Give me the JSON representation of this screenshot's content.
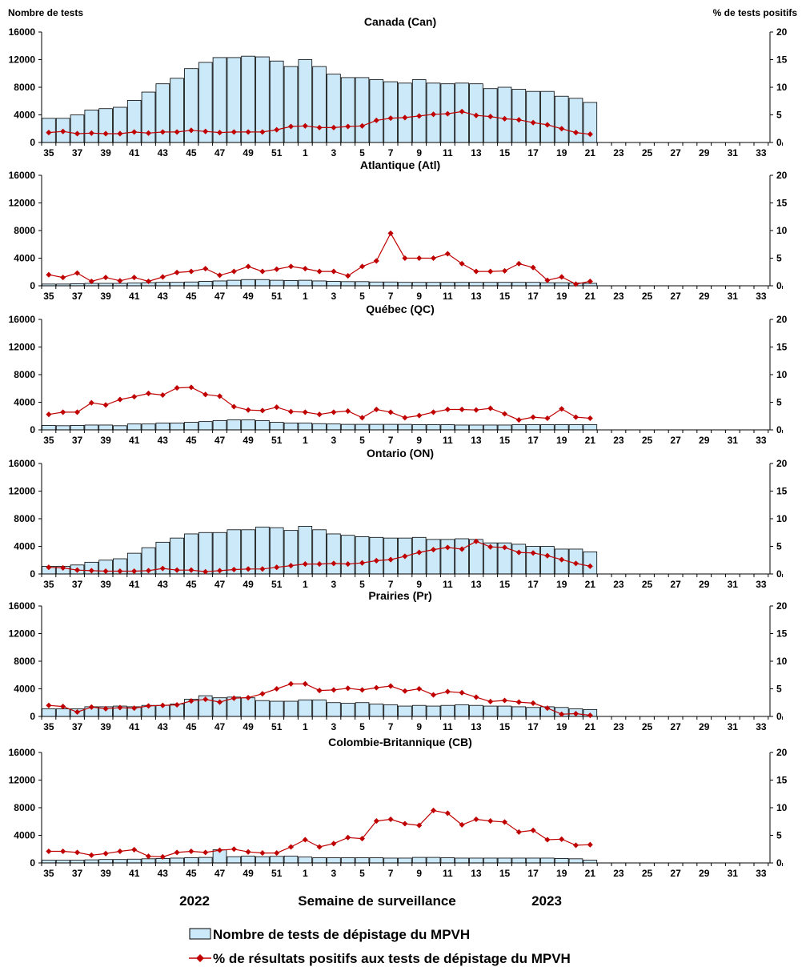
{
  "chart_data": [
    {
      "type": "bar+line",
      "title": "Canada (Can)",
      "ylabel_left": "Nombre de tests",
      "ylabel_right": "%  de tests positifs",
      "ylim_left": [
        0,
        16000
      ],
      "ylim_right": [
        0,
        20
      ],
      "yticks_left": [
        "0",
        "4000",
        "8000",
        "12000",
        "16000"
      ],
      "yticks_right": [
        "0",
        "5",
        "10",
        "15",
        "20"
      ],
      "weeks": [
        35,
        36,
        37,
        38,
        39,
        40,
        41,
        42,
        43,
        44,
        45,
        46,
        47,
        48,
        49,
        50,
        51,
        52,
        1,
        2,
        3,
        4,
        5,
        6,
        7,
        8,
        9,
        10,
        11,
        12,
        13,
        14,
        15,
        16,
        17,
        18,
        19,
        20,
        21,
        22,
        23,
        24,
        25,
        26,
        27,
        28,
        29,
        30,
        31,
        32,
        33,
        34
      ],
      "week_labels": [
        "35",
        "37",
        "39",
        "41",
        "43",
        "45",
        "47",
        "49",
        "51",
        "1",
        "3",
        "5",
        "7",
        "9",
        "11",
        "13",
        "15",
        "17",
        "19",
        "21",
        "23",
        "25",
        "27",
        "29",
        "31",
        "33"
      ],
      "series": [
        {
          "name": "Nombre de tests de dépistage du MPVH",
          "kind": "bar",
          "values": [
            3500,
            3500,
            4000,
            4700,
            4900,
            5100,
            6100,
            7300,
            8500,
            9300,
            10700,
            11600,
            12300,
            12300,
            12500,
            12400,
            11800,
            11000,
            12000,
            11000,
            9900,
            9400,
            9400,
            9100,
            8800,
            8600,
            9100,
            8600,
            8500,
            8600,
            8500,
            7800,
            8000,
            7700,
            7400,
            7400,
            6700,
            6400,
            5800
          ]
        },
        {
          "name": "% de résultats positifs aux tests de dépistage du MPVH",
          "kind": "line",
          "values": [
            1.8,
            2.0,
            1.6,
            1.7,
            1.6,
            1.6,
            1.9,
            1.7,
            1.9,
            1.9,
            2.2,
            2.0,
            1.8,
            1.9,
            1.9,
            1.9,
            2.3,
            2.9,
            3.0,
            2.7,
            2.7,
            2.9,
            3.0,
            4.0,
            4.4,
            4.5,
            4.8,
            5.1,
            5.2,
            5.6,
            4.9,
            4.7,
            4.3,
            4.1,
            3.6,
            3.2,
            2.5,
            1.8,
            1.5
          ]
        }
      ]
    },
    {
      "type": "bar+line",
      "title": "Atlantique (Atl)",
      "ylim_left": [
        0,
        16000
      ],
      "ylim_right": [
        0,
        20
      ],
      "yticks_left": [
        "0",
        "4000",
        "8000",
        "12000",
        "16000"
      ],
      "yticks_right": [
        "0",
        "5",
        "10",
        "15",
        "20"
      ],
      "week_labels": [
        "35",
        "37",
        "39",
        "41",
        "43",
        "45",
        "47",
        "49",
        "51",
        "1",
        "3",
        "5",
        "7",
        "9",
        "11",
        "13",
        "15",
        "17",
        "19",
        "21",
        "23",
        "25",
        "27",
        "29",
        "31",
        "33"
      ],
      "series": [
        {
          "name": "Nombre de tests de dépistage du MPVH",
          "kind": "bar",
          "values": [
            250,
            250,
            300,
            350,
            350,
            350,
            400,
            450,
            500,
            500,
            550,
            650,
            700,
            800,
            900,
            900,
            800,
            750,
            800,
            700,
            650,
            600,
            600,
            550,
            550,
            500,
            500,
            500,
            500,
            500,
            500,
            500,
            500,
            500,
            500,
            450,
            450,
            400,
            350
          ]
        },
        {
          "name": "% de résultats positifs aux tests de dépistage du MPVH",
          "kind": "line",
          "values": [
            2.0,
            1.5,
            2.3,
            0.8,
            1.5,
            0.9,
            1.5,
            0.8,
            1.6,
            2.4,
            2.6,
            3.1,
            1.9,
            2.6,
            3.5,
            2.6,
            3.0,
            3.5,
            3.1,
            2.6,
            2.6,
            1.8,
            3.5,
            4.5,
            9.5,
            5.0,
            5.0,
            5.0,
            5.8,
            4.0,
            2.6,
            2.6,
            2.7,
            4.0,
            3.3,
            1.0,
            1.6,
            0.3,
            0.8
          ]
        }
      ]
    },
    {
      "type": "bar+line",
      "title": "Québec (QC)",
      "ylim_left": [
        0,
        16000
      ],
      "ylim_right": [
        0,
        20
      ],
      "yticks_left": [
        "0",
        "4000",
        "8000",
        "12000",
        "16000"
      ],
      "yticks_right": [
        "0",
        "5",
        "10",
        "15",
        "20"
      ],
      "week_labels": [
        "35",
        "37",
        "39",
        "41",
        "43",
        "45",
        "47",
        "49",
        "51",
        "1",
        "3",
        "5",
        "7",
        "9",
        "11",
        "13",
        "15",
        "17",
        "19",
        "21",
        "23",
        "25",
        "27",
        "29",
        "31",
        "33"
      ],
      "series": [
        {
          "name": "Nombre de tests de dépistage du MPVH",
          "kind": "bar",
          "values": [
            650,
            600,
            650,
            700,
            700,
            600,
            850,
            850,
            1000,
            1000,
            1100,
            1200,
            1350,
            1450,
            1450,
            1350,
            1100,
            1000,
            1000,
            900,
            850,
            800,
            800,
            800,
            800,
            800,
            750,
            750,
            750,
            700,
            700,
            700,
            700,
            750,
            750,
            750,
            750,
            750,
            750
          ]
        },
        {
          "name": "% de résultats positifs aux tests de dépistage du MPVH",
          "kind": "line",
          "values": [
            2.8,
            3.2,
            3.2,
            4.9,
            4.5,
            5.5,
            6.0,
            6.6,
            6.3,
            7.6,
            7.7,
            6.4,
            6.1,
            4.2,
            3.6,
            3.5,
            4.1,
            3.3,
            3.2,
            2.8,
            3.2,
            3.4,
            2.2,
            3.7,
            3.2,
            2.2,
            2.6,
            3.2,
            3.7,
            3.7,
            3.6,
            3.9,
            2.9,
            1.8,
            2.3,
            2.1,
            3.8,
            2.3,
            2.1
          ]
        }
      ]
    },
    {
      "type": "bar+line",
      "title": "Ontario (ON)",
      "ylim_left": [
        0,
        16000
      ],
      "ylim_right": [
        0,
        20
      ],
      "yticks_left": [
        "0",
        "4000",
        "8000",
        "12000",
        "16000"
      ],
      "yticks_right": [
        "0",
        "5",
        "10",
        "15",
        "20"
      ],
      "week_labels": [
        "35",
        "37",
        "39",
        "41",
        "43",
        "45",
        "47",
        "49",
        "51",
        "1",
        "3",
        "5",
        "7",
        "9",
        "11",
        "13",
        "15",
        "17",
        "19",
        "21",
        "23",
        "25",
        "27",
        "29",
        "31",
        "33"
      ],
      "series": [
        {
          "name": "Nombre de tests de dépistage du MPVH",
          "kind": "bar",
          "values": [
            1100,
            1100,
            1300,
            1700,
            2000,
            2200,
            3000,
            3800,
            4600,
            5200,
            5800,
            6000,
            6000,
            6400,
            6400,
            6800,
            6700,
            6300,
            6900,
            6400,
            5800,
            5600,
            5400,
            5300,
            5200,
            5200,
            5300,
            5000,
            5000,
            5100,
            5000,
            4500,
            4500,
            4300,
            4000,
            4000,
            3600,
            3600,
            3200
          ]
        },
        {
          "name": "% de résultats positifs aux tests de dépistage du MPVH",
          "kind": "line",
          "values": [
            1.2,
            1.1,
            0.7,
            0.6,
            0.5,
            0.5,
            0.5,
            0.6,
            1.0,
            0.7,
            0.7,
            0.4,
            0.6,
            0.8,
            0.9,
            0.9,
            1.2,
            1.5,
            1.8,
            1.8,
            1.9,
            1.8,
            2.0,
            2.4,
            2.6,
            3.2,
            3.9,
            4.4,
            4.8,
            4.5,
            5.9,
            4.9,
            4.8,
            3.9,
            3.8,
            3.3,
            2.6,
            1.9,
            1.4
          ]
        }
      ]
    },
    {
      "type": "bar+line",
      "title": "Prairies (Pr)",
      "ylim_left": [
        0,
        16000
      ],
      "ylim_right": [
        0,
        20
      ],
      "yticks_left": [
        "0",
        "4000",
        "8000",
        "12000",
        "16000"
      ],
      "yticks_right": [
        "0",
        "5",
        "10",
        "15",
        "20"
      ],
      "week_labels": [
        "35",
        "37",
        "39",
        "41",
        "43",
        "45",
        "47",
        "49",
        "51",
        "1",
        "3",
        "5",
        "7",
        "9",
        "11",
        "13",
        "15",
        "17",
        "19",
        "21",
        "23",
        "25",
        "27",
        "29",
        "31",
        "33"
      ],
      "series": [
        {
          "name": "Nombre de tests de dépistage du MPVH",
          "kind": "bar",
          "values": [
            1100,
            1100,
            1100,
            1400,
            1400,
            1500,
            1400,
            1600,
            1600,
            1800,
            2500,
            3000,
            2700,
            2800,
            2700,
            2300,
            2200,
            2200,
            2400,
            2400,
            2000,
            1900,
            2000,
            1800,
            1700,
            1500,
            1600,
            1500,
            1600,
            1700,
            1600,
            1500,
            1500,
            1400,
            1300,
            1400,
            1300,
            1100,
            1000
          ]
        },
        {
          "name": "% de résultats positifs aux tests de dépistage du MPVH",
          "kind": "line",
          "values": [
            2.0,
            1.8,
            0.8,
            1.7,
            1.4,
            1.6,
            1.5,
            1.9,
            2.0,
            2.1,
            2.8,
            3.1,
            2.6,
            3.3,
            3.4,
            4.1,
            5.0,
            5.9,
            5.9,
            4.7,
            4.8,
            5.1,
            4.8,
            5.2,
            5.5,
            4.6,
            5.0,
            3.9,
            4.5,
            4.3,
            3.5,
            2.7,
            2.9,
            2.6,
            2.4,
            1.5,
            0.4,
            0.5,
            0.2
          ]
        }
      ]
    },
    {
      "type": "bar+line",
      "title": "Colombie-Britannique (CB)",
      "ylim_left": [
        0,
        16000
      ],
      "ylim_right": [
        0,
        20
      ],
      "yticks_left": [
        "0",
        "4000",
        "8000",
        "12000",
        "16000"
      ],
      "yticks_right": [
        "0",
        "5",
        "10",
        "15",
        "20"
      ],
      "week_labels": [
        "35",
        "37",
        "39",
        "41",
        "43",
        "45",
        "47",
        "49",
        "51",
        "1",
        "3",
        "5",
        "7",
        "9",
        "11",
        "13",
        "15",
        "17",
        "19",
        "21",
        "23",
        "25",
        "27",
        "29",
        "31",
        "33"
      ],
      "series": [
        {
          "name": "Nombre de tests de dépistage du MPVH",
          "kind": "bar",
          "values": [
            400,
            400,
            400,
            450,
            500,
            500,
            550,
            600,
            650,
            700,
            750,
            800,
            1900,
            900,
            1000,
            900,
            950,
            1000,
            850,
            750,
            750,
            750,
            750,
            750,
            700,
            700,
            800,
            800,
            750,
            700,
            700,
            700,
            700,
            700,
            700,
            700,
            650,
            600,
            400
          ]
        },
        {
          "name": "% de résultats positifs aux tests de dépistage du MPVH",
          "kind": "line",
          "values": [
            2.1,
            2.1,
            1.9,
            1.4,
            1.7,
            2.1,
            2.4,
            1.2,
            1.1,
            1.9,
            2.1,
            1.9,
            2.3,
            2.5,
            2.0,
            1.8,
            1.8,
            2.9,
            4.2,
            2.9,
            3.5,
            4.6,
            4.4,
            7.6,
            7.9,
            7.1,
            6.8,
            9.5,
            9.0,
            6.9,
            7.9,
            7.6,
            7.4,
            5.6,
            5.9,
            4.2,
            4.3,
            3.2,
            3.3
          ]
        }
      ]
    }
  ],
  "x_axis": {
    "label": "Semaine de surveillance",
    "year_left": "2022",
    "year_right": "2023"
  },
  "legend": {
    "bar_label": "Nombre de tests de dépistage du MPVH",
    "line_label": "% de résultats positifs aux tests de dépistage du MPVH"
  },
  "colors": {
    "bar_fill": "#cce9f9",
    "bar_stroke": "#000000",
    "line": "#c00000"
  }
}
